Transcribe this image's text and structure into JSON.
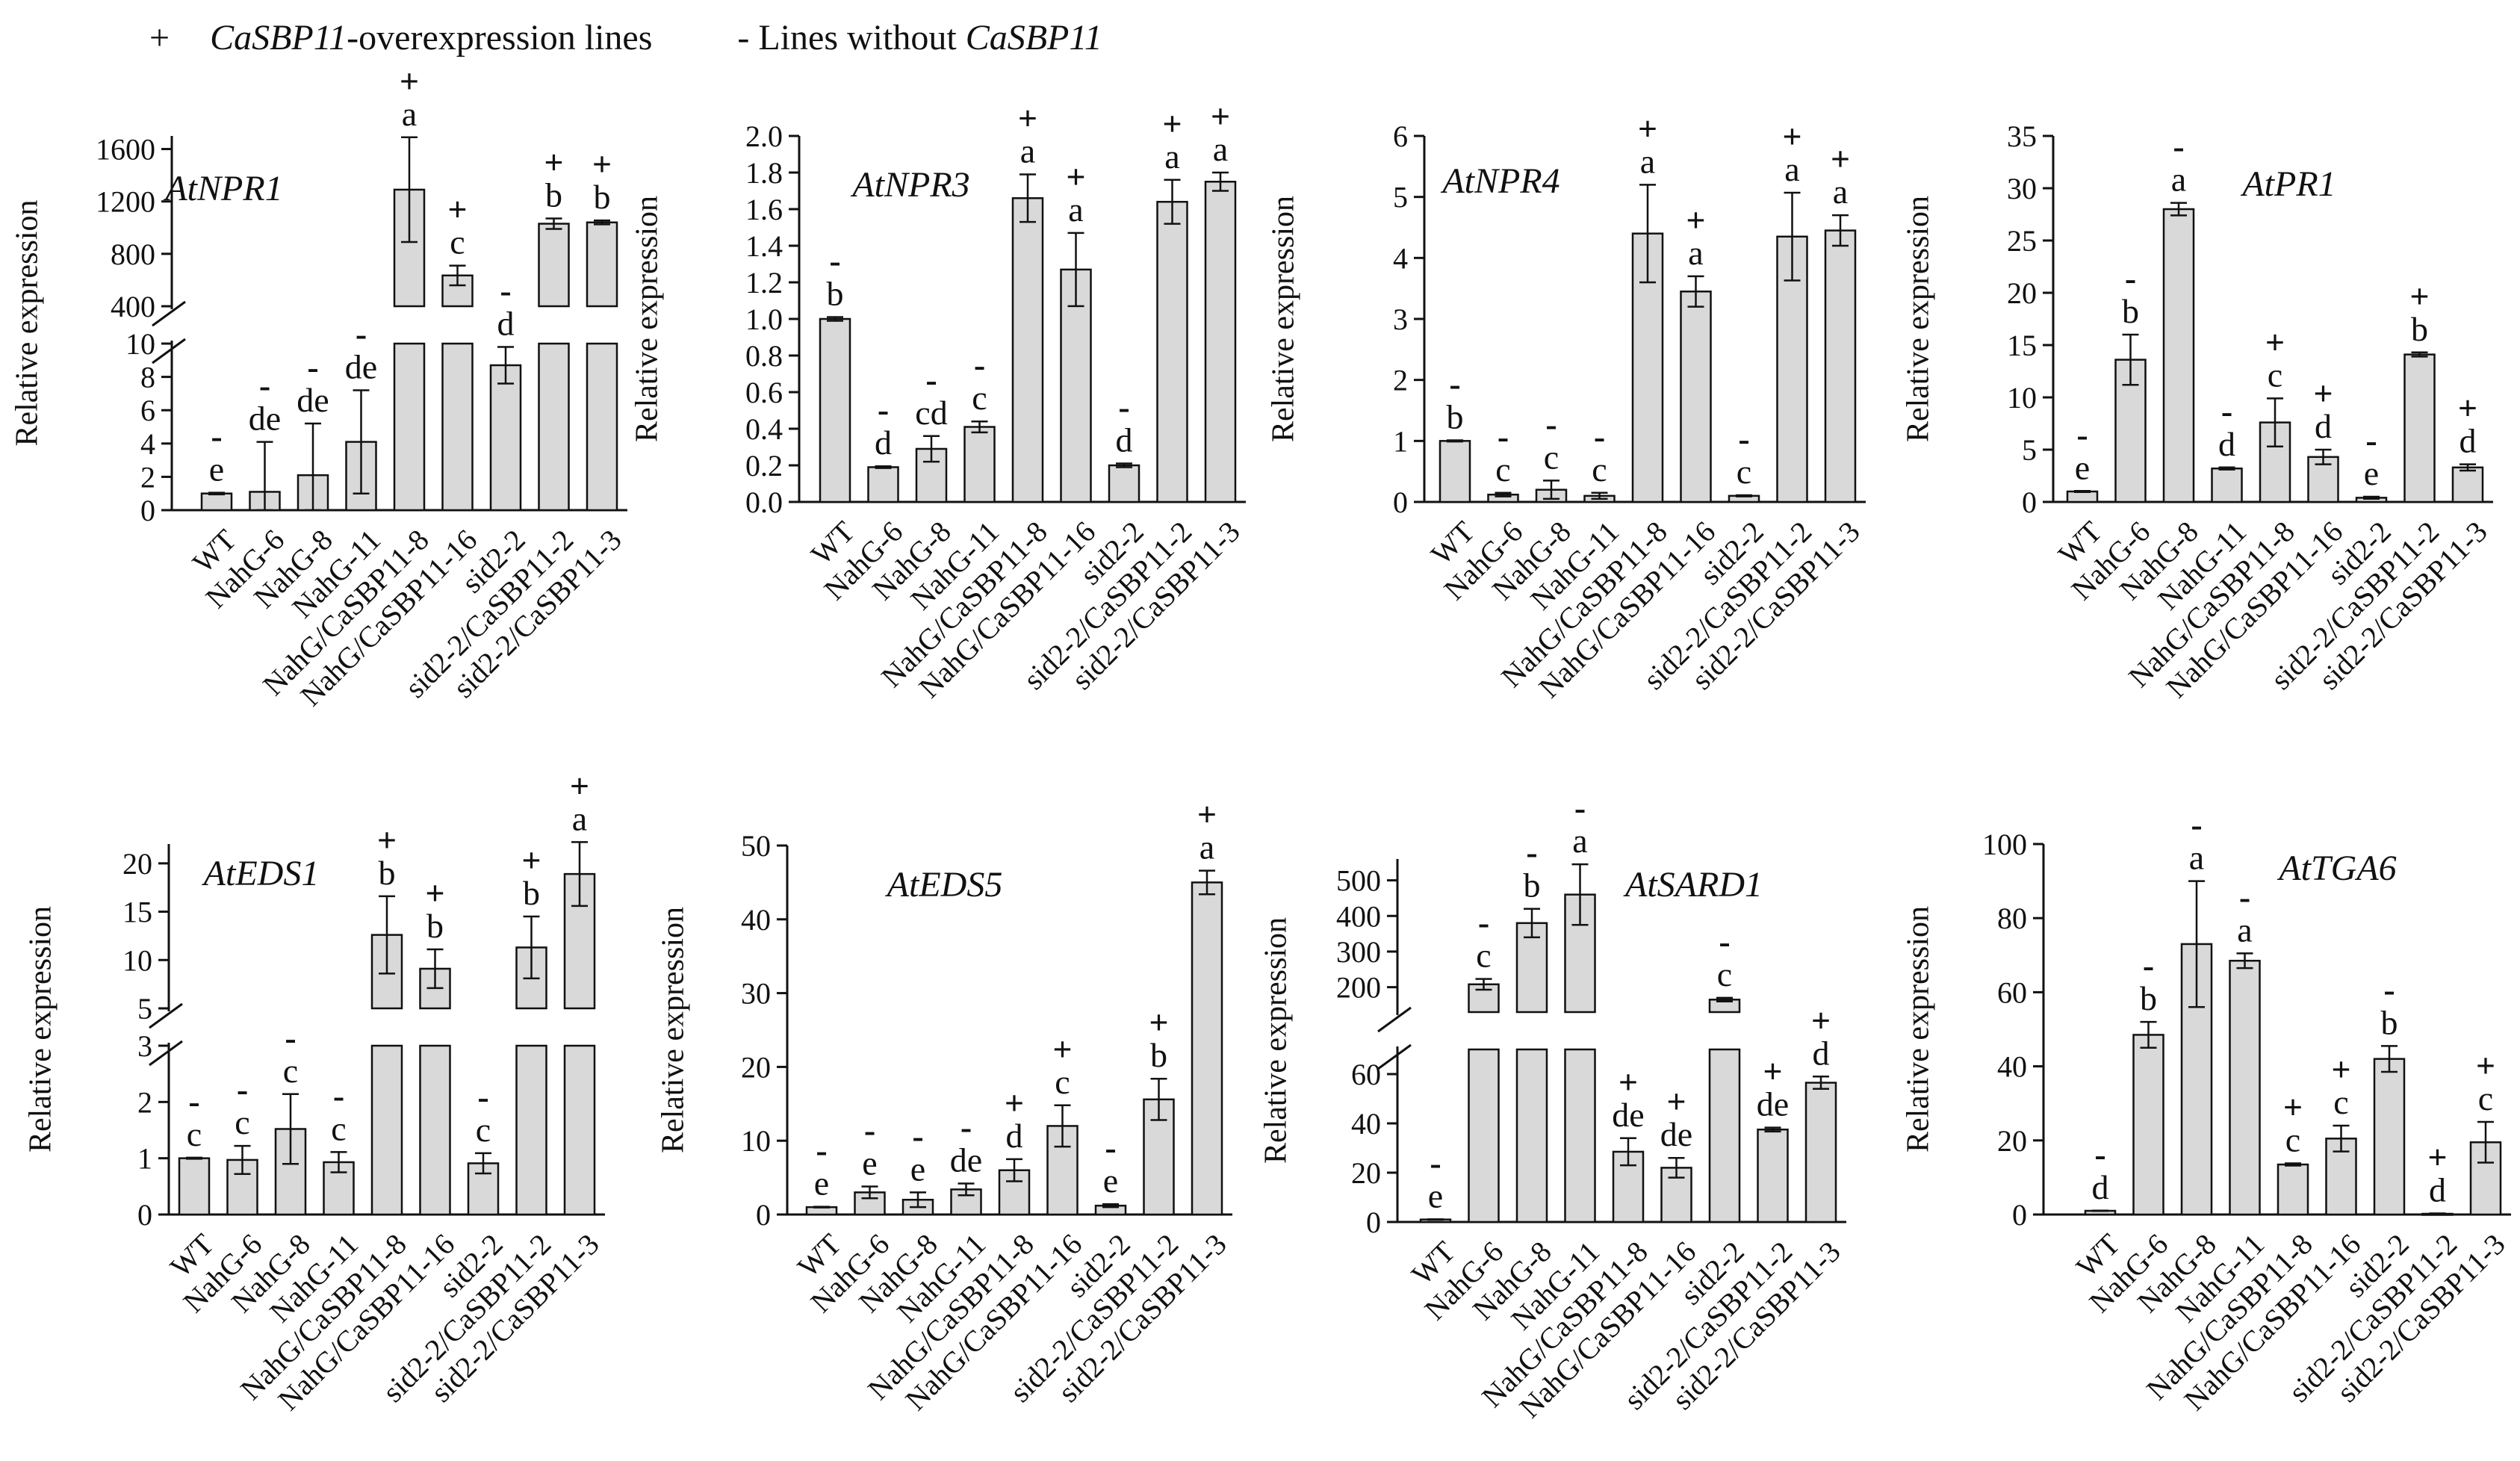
{
  "legend": {
    "plus_symbol": "+",
    "plus_gene": "CaSBP11",
    "plus_text": "-overexpression  lines",
    "minus_text": "- Lines without",
    "minus_gene": "CaSBP11"
  },
  "chart_data": [
    {
      "type": "bar",
      "title": "AtNPR1",
      "xlabel": "",
      "ylabel": "Relative expression",
      "broken_axis": true,
      "lower_ylim": [
        0,
        10
      ],
      "lower_ticks": [
        0,
        2,
        4,
        6,
        8,
        10
      ],
      "upper_ylim": [
        400,
        1700
      ],
      "upper_ticks": [
        400,
        800,
        1200,
        1600
      ],
      "categories": [
        "WT",
        "NahG-6",
        "NahG-8",
        "NahG-11",
        "NahG/CaSBP11-8",
        "NahG/CaSBP11-16",
        "sid2-2",
        "sid2-2/CaSBP11-2",
        "sid2-2/CaSBP11-3"
      ],
      "values": [
        1,
        1.1,
        2.1,
        4.1,
        1290,
        635,
        8.7,
        1030,
        1040
      ],
      "errors": [
        0.05,
        3.0,
        3.1,
        3.1,
        400,
        75,
        1.1,
        40,
        15
      ],
      "letters": [
        "e",
        "de",
        "de",
        "de",
        "a",
        "c",
        "d",
        "b",
        "b"
      ],
      "signs": [
        "-",
        "-",
        "-",
        "-",
        "+",
        "+",
        "-",
        "+",
        "+"
      ]
    },
    {
      "type": "bar",
      "title": "AtNPR3",
      "xlabel": "",
      "ylabel": "Relative expression",
      "broken_axis": false,
      "ylim": [
        0,
        2.0
      ],
      "ticks": [
        "0.0",
        "0.2",
        "0.4",
        "0.6",
        "0.8",
        "1.0",
        "1.2",
        "1.4",
        "1.6",
        "1.8",
        "2.0"
      ],
      "categories": [
        "WT",
        "NahG-6",
        "NahG-8",
        "NahG-11",
        "NahG/CaSBP11-8",
        "NahG/CaSBP11-16",
        "sid2-2",
        "sid2-2/CaSBP11-2",
        "sid2-2/CaSBP11-3"
      ],
      "values": [
        1.0,
        0.19,
        0.29,
        0.41,
        1.66,
        1.27,
        0.2,
        1.64,
        1.75
      ],
      "errors": [
        0.01,
        0.005,
        0.07,
        0.03,
        0.13,
        0.2,
        0.01,
        0.12,
        0.05
      ],
      "letters": [
        "b",
        "d",
        "cd",
        "c",
        "a",
        "a",
        "d",
        "a",
        "a"
      ],
      "signs": [
        "-",
        "-",
        "-",
        "-",
        "+",
        "+",
        "-",
        "+",
        "+"
      ]
    },
    {
      "type": "bar",
      "title": "AtNPR4",
      "xlabel": "",
      "ylabel": "Relative expression",
      "broken_axis": false,
      "ylim": [
        0,
        6
      ],
      "ticks": [
        "0",
        "1",
        "2",
        "3",
        "4",
        "5",
        "6"
      ],
      "categories": [
        "WT",
        "NahG-6",
        "NahG-8",
        "NahG-11",
        "NahG/CaSBP11-8",
        "NahG/CaSBP11-16",
        "sid2-2",
        "sid2-2/CaSBP11-2",
        "sid2-2/CaSBP11-3"
      ],
      "values": [
        1.0,
        0.12,
        0.2,
        0.1,
        4.4,
        3.45,
        0.1,
        4.35,
        4.45
      ],
      "errors": [
        0.01,
        0.03,
        0.15,
        0.05,
        0.8,
        0.25,
        0.01,
        0.72,
        0.25
      ],
      "letters": [
        "b",
        "c",
        "c",
        "c",
        "a",
        "a",
        "c",
        "a",
        "a"
      ],
      "signs": [
        "-",
        "-",
        "-",
        "-",
        "+",
        "+",
        "-",
        "+",
        "+"
      ]
    },
    {
      "type": "bar",
      "title": "AtPR1",
      "xlabel": "",
      "ylabel": "Relative expression",
      "broken_axis": false,
      "ylim": [
        0,
        35
      ],
      "ticks": [
        "0",
        "5",
        "10",
        "15",
        "20",
        "25",
        "30",
        "35"
      ],
      "categories": [
        "WT",
        "NahG-6",
        "NahG-8",
        "NahG-11",
        "NahG/CaSBP11-8",
        "NahG/CaSBP11-16",
        "sid2-2",
        "sid2-2/CaSBP11-2",
        "sid2-2/CaSBP11-3"
      ],
      "values": [
        1.0,
        13.6,
        28.0,
        3.2,
        7.6,
        4.3,
        0.4,
        14.1,
        3.3
      ],
      "errors": [
        0.05,
        2.4,
        0.6,
        0.1,
        2.3,
        0.7,
        0.1,
        0.2,
        0.3
      ],
      "letters": [
        "e",
        "b",
        "a",
        "d",
        "c",
        "d",
        "e",
        "b",
        "d"
      ],
      "signs": [
        "-",
        "-",
        "-",
        "-",
        "+",
        "+",
        "-",
        "+",
        "+"
      ]
    },
    {
      "type": "bar",
      "title": "AtEDS1",
      "xlabel": "",
      "ylabel": "Relative expression",
      "broken_axis": true,
      "lower_ylim": [
        0,
        3
      ],
      "lower_ticks": [
        0,
        1,
        2,
        3
      ],
      "upper_ylim": [
        5,
        22
      ],
      "upper_ticks": [
        5,
        10,
        15,
        20
      ],
      "categories": [
        "WT",
        "NahG-6",
        "NahG-8",
        "NahG-11",
        "NahG/CaSBP11-8",
        "NahG/CaSBP11-16",
        "sid2-2",
        "sid2-2/CaSBP11-2",
        "sid2-2/CaSBP11-3"
      ],
      "values": [
        1.0,
        0.97,
        1.52,
        0.93,
        12.6,
        9.1,
        0.91,
        11.3,
        18.9
      ],
      "errors": [
        0.01,
        0.25,
        0.62,
        0.18,
        4.0,
        2.0,
        0.18,
        3.2,
        3.3
      ],
      "letters": [
        "c",
        "c",
        "c",
        "c",
        "b",
        "b",
        "c",
        "b",
        "a"
      ],
      "signs": [
        "-",
        "-",
        "-",
        "-",
        "+",
        "+",
        "-",
        "+",
        "+"
      ]
    },
    {
      "type": "bar",
      "title": "AtEDS5",
      "xlabel": "",
      "ylabel": "Relative expression",
      "broken_axis": false,
      "ylim": [
        0,
        50
      ],
      "ticks": [
        "0",
        "10",
        "20",
        "30",
        "40",
        "50"
      ],
      "categories": [
        "WT",
        "NahG-6",
        "NahG-8",
        "NahG-11",
        "NahG/CaSBP11-8",
        "NahG/CaSBP11-16",
        "sid2-2",
        "sid2-2/CaSBP11-2",
        "sid2-2/CaSBP11-3"
      ],
      "values": [
        1.0,
        3.0,
        2.0,
        3.4,
        6.0,
        12.0,
        1.2,
        15.6,
        45.0
      ],
      "errors": [
        0.05,
        0.8,
        1.0,
        0.8,
        1.5,
        2.8,
        0.2,
        2.8,
        1.6
      ],
      "letters": [
        "e",
        "e",
        "e",
        "de",
        "d",
        "c",
        "e",
        "b",
        "a"
      ],
      "signs": [
        "-",
        "-",
        "-",
        "-",
        "+",
        "+",
        "-",
        "+",
        "+"
      ]
    },
    {
      "type": "bar",
      "title": "AtSARD1",
      "xlabel": "",
      "ylabel": "Relative expression",
      "broken_axis": true,
      "lower_ylim": [
        0,
        70
      ],
      "lower_ticks": [
        0,
        20,
        40,
        60
      ],
      "upper_ylim": [
        130,
        560
      ],
      "upper_ticks": [
        200,
        300,
        400,
        500
      ],
      "categories": [
        "WT",
        "NahG-6",
        "NahG-8",
        "NahG-11",
        "NahG/CaSBP11-8",
        "NahG/CaSBP11-16",
        "sid2-2",
        "sid2-2/CaSBP11-2",
        "sid2-2/CaSBP11-3"
      ],
      "values": [
        1.0,
        208,
        380,
        460,
        28.5,
        22.0,
        165,
        37.5,
        56.5
      ],
      "errors": [
        0.1,
        15,
        40,
        85,
        5.5,
        4.0,
        5,
        0.8,
        2.5
      ],
      "letters": [
        "e",
        "c",
        "b",
        "a",
        "de",
        "de",
        "c",
        "de",
        "d"
      ],
      "signs": [
        "-",
        "-",
        "-",
        "-",
        "+",
        "+",
        "-",
        "+",
        "+"
      ]
    },
    {
      "type": "bar",
      "title": "AtTGA6",
      "xlabel": "",
      "ylabel": "Relative expression",
      "broken_axis": false,
      "ylim": [
        0,
        100
      ],
      "ticks": [
        "0",
        "20",
        "40",
        "60",
        "80",
        "100"
      ],
      "categories": [
        "WT",
        "NahG-6",
        "NahG-8",
        "NahG-11",
        "NahG/CaSBP11-8",
        "NahG/CaSBP11-16",
        "sid2-2",
        "sid2-2/CaSBP11-2",
        "sid2-2/CaSBP11-3"
      ],
      "values": [
        1.0,
        48.5,
        73.0,
        68.5,
        13.5,
        20.5,
        42.0,
        0.2,
        19.5
      ],
      "errors": [
        0.05,
        3.5,
        17.0,
        2.0,
        0.3,
        3.5,
        3.5,
        0.1,
        5.5
      ],
      "letters": [
        "d",
        "b",
        "a",
        "a",
        "c",
        "c",
        "b",
        "d",
        "c"
      ],
      "signs": [
        "-",
        "-",
        "-",
        "-",
        "+",
        "+",
        "-",
        "+",
        "+"
      ]
    }
  ]
}
